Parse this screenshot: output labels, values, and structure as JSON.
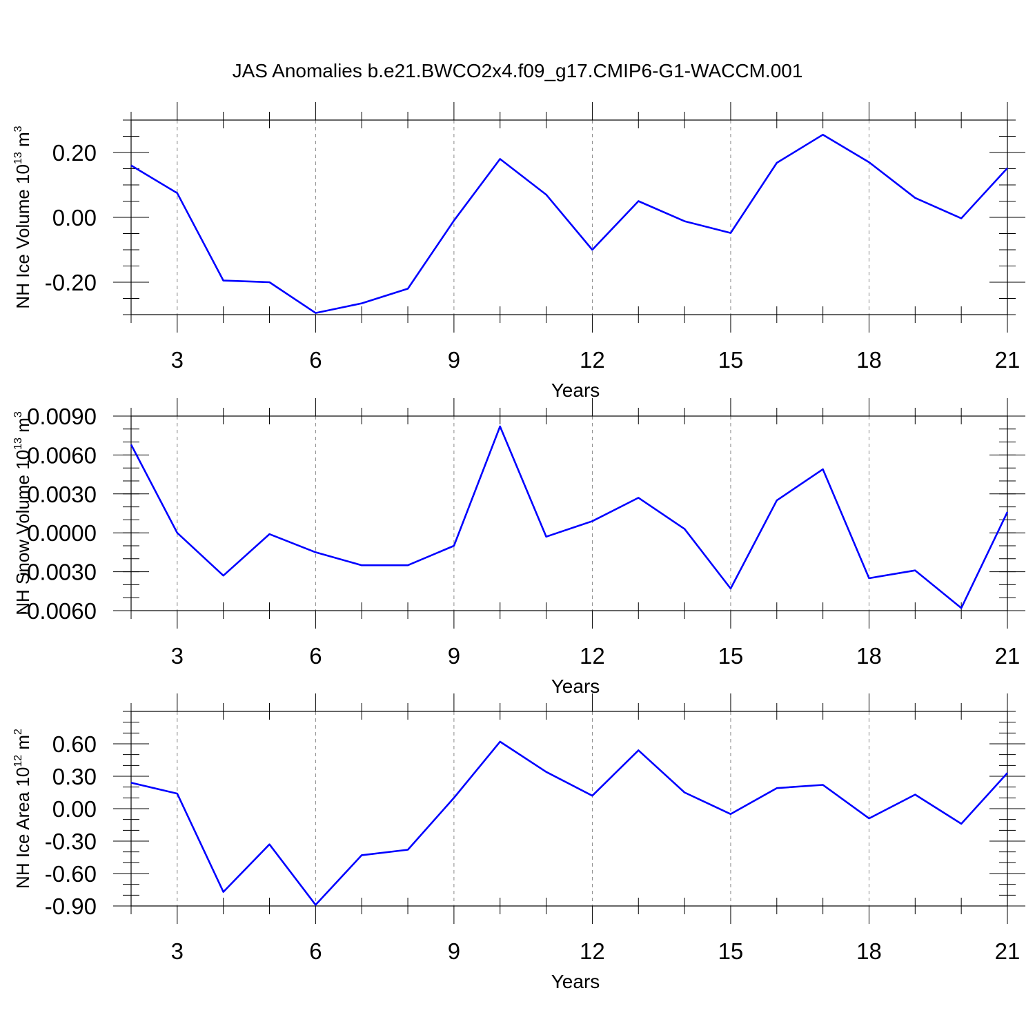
{
  "figure": {
    "title": "JAS Anomalies b.e21.BWCO2x4.f09_g17.CMIP6-G1-WACCM.001"
  },
  "colors": {
    "line": "#0000ff",
    "axis": "#000000",
    "grid": "#888888"
  },
  "chart_data": [
    {
      "type": "line",
      "xlabel": "Years",
      "ylabel_parts": [
        "NH Ice Volume 10",
        "13",
        " m",
        "3"
      ],
      "xlim": [
        2,
        21
      ],
      "ylim": [
        -0.3,
        0.3
      ],
      "xticks": [
        3,
        6,
        9,
        12,
        15,
        18,
        21
      ],
      "ytick_values": [
        -0.2,
        0.0,
        0.2
      ],
      "ytick_labels": [
        "-0.20",
        "0.00",
        "0.20"
      ],
      "yminor_step": 0.05,
      "grid": "x-dashed",
      "x": [
        2,
        3,
        4,
        5,
        6,
        7,
        8,
        9,
        10,
        11,
        12,
        13,
        14,
        15,
        16,
        17,
        18,
        19,
        20,
        21
      ],
      "y": [
        0.16,
        0.075,
        -0.195,
        -0.2,
        -0.295,
        -0.265,
        -0.22,
        -0.01,
        0.18,
        0.07,
        -0.1,
        0.05,
        -0.012,
        -0.048,
        0.168,
        0.255,
        0.17,
        0.06,
        -0.003,
        0.152
      ]
    },
    {
      "type": "line",
      "xlabel": "Years",
      "ylabel_parts": [
        "NH Snow Volume 10",
        "13",
        " m",
        "3"
      ],
      "xlim": [
        2,
        21
      ],
      "ylim": [
        -0.006,
        0.009
      ],
      "xticks": [
        3,
        6,
        9,
        12,
        15,
        18,
        21
      ],
      "ytick_values": [
        -0.006,
        -0.003,
        0.0,
        0.003,
        0.006,
        0.009
      ],
      "ytick_labels": [
        "-0.0060",
        "-0.0030",
        "0.0000",
        "0.0030",
        "0.0060",
        "0.0090"
      ],
      "yminor_step": 0.001,
      "grid": "x-dashed",
      "x": [
        2,
        3,
        4,
        5,
        6,
        7,
        8,
        9,
        10,
        11,
        12,
        13,
        14,
        15,
        16,
        17,
        18,
        19,
        20,
        21
      ],
      "y": [
        0.0068,
        0.0,
        -0.0033,
        -0.0001,
        -0.0015,
        -0.0025,
        -0.0025,
        -0.001,
        0.0082,
        -0.0003,
        0.0009,
        0.0027,
        0.0003,
        -0.0043,
        0.0025,
        0.0049,
        -0.0035,
        -0.0029,
        -0.0058,
        0.0016
      ]
    },
    {
      "type": "line",
      "xlabel": "Years",
      "ylabel_parts": [
        "NH Ice Area 10",
        "12",
        " m",
        "2"
      ],
      "xlim": [
        2,
        21
      ],
      "ylim": [
        -0.9,
        0.9
      ],
      "xticks": [
        3,
        6,
        9,
        12,
        15,
        18,
        21
      ],
      "ytick_values": [
        -0.9,
        -0.6,
        -0.3,
        0.0,
        0.3,
        0.6
      ],
      "ytick_labels": [
        "-0.90",
        "-0.60",
        "-0.30",
        "0.00",
        "0.30",
        "0.60"
      ],
      "yminor_step": 0.1,
      "grid": "x-dashed",
      "x": [
        2,
        3,
        4,
        5,
        6,
        7,
        8,
        9,
        10,
        11,
        12,
        13,
        14,
        15,
        16,
        17,
        18,
        19,
        20,
        21
      ],
      "y": [
        0.24,
        0.14,
        -0.77,
        -0.33,
        -0.89,
        -0.43,
        -0.38,
        0.1,
        0.62,
        0.34,
        0.12,
        0.54,
        0.15,
        -0.05,
        0.19,
        0.22,
        -0.09,
        0.13,
        -0.14,
        0.33
      ]
    }
  ]
}
